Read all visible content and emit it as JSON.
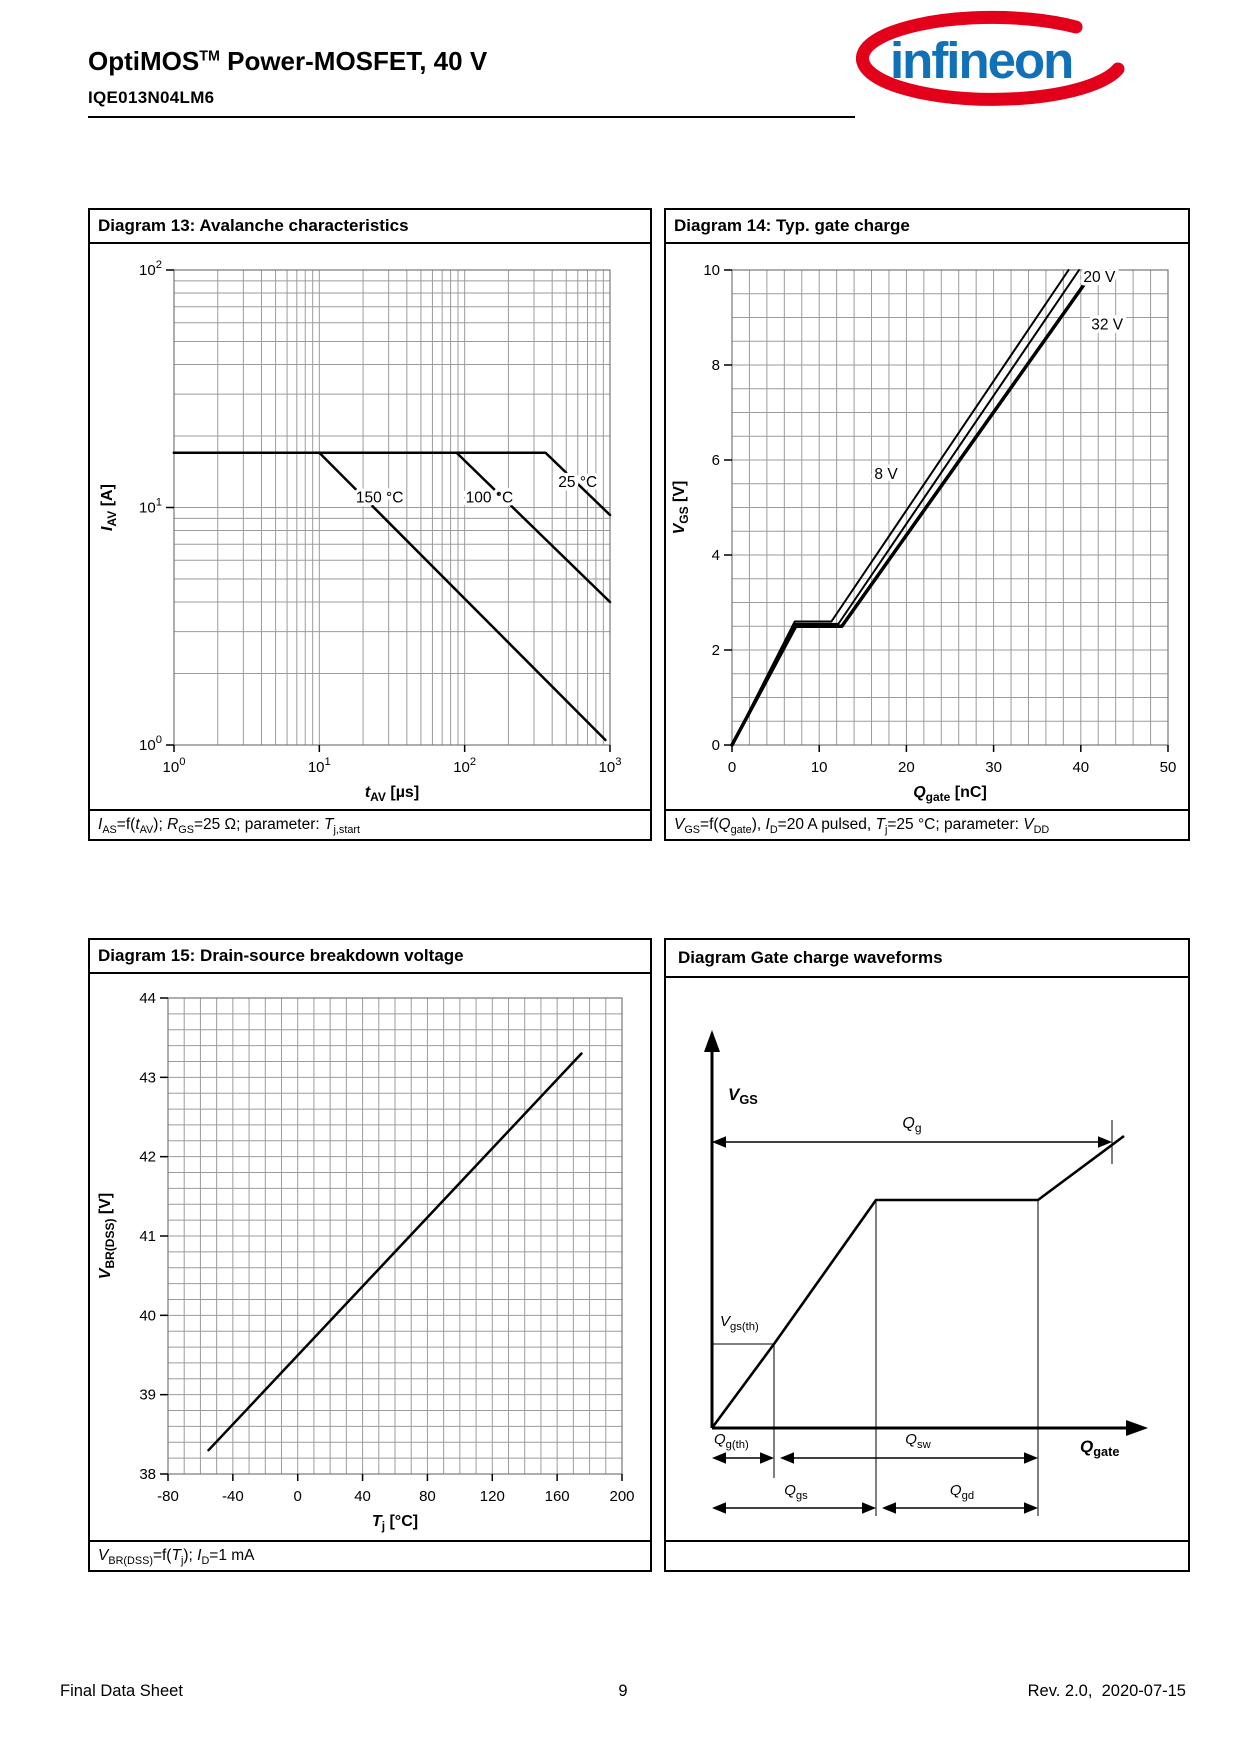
{
  "page": {
    "header": {
      "title": "OptiMOS^TM^ Power-MOSFET, 40 V",
      "part_number": "IQE013N04LM6"
    },
    "logo": {
      "text": "infineon",
      "blue": "#1070B8",
      "red": "#E2001A"
    },
    "footer": {
      "left": "Final Data Sheet",
      "page": "9",
      "right": "Rev. 2.0,  2020-07-15"
    }
  },
  "chart_data": [
    {
      "id": "diagram13",
      "type": "line",
      "title": "Diagram 13: Avalanche characteristics",
      "caption": "*I*~AS~=f(*t*~AV~); *R*~GS~=25 Ω; parameter: *T*~j,start~",
      "xlabel": "*t*~AV~ [µs]",
      "ylabel": "*I*~AV~ [A]",
      "xscale": "log",
      "yscale": "log",
      "xlim": [
        1,
        1000
      ],
      "ylim": [
        1,
        100
      ],
      "grid": "#9b9b9b",
      "line_color": "#000000",
      "series": [
        {
          "name": "150 °C",
          "width": 2.5,
          "points": [
            [
              1,
              17
            ],
            [
              10,
              17
            ],
            [
              930,
              1.05
            ]
          ],
          "label": {
            "text": "150 °C",
            "x": 26,
            "y": 10.5,
            "anchor": "middle"
          }
        },
        {
          "name": "100 °C",
          "width": 2.5,
          "points": [
            [
              1,
              17
            ],
            [
              88,
              17
            ],
            [
              1000,
              4.0
            ]
          ],
          "label": {
            "text": "100 °C",
            "x": 148,
            "y": 10.5,
            "anchor": "middle"
          }
        },
        {
          "name": "25 °C",
          "width": 2.5,
          "points": [
            [
              1,
              17
            ],
            [
              360,
              17
            ],
            [
              1000,
              9.3
            ]
          ],
          "label": {
            "text": "25 °C",
            "x": 600,
            "y": 12.2,
            "anchor": "middle"
          }
        }
      ]
    },
    {
      "id": "diagram14",
      "type": "line",
      "title": "Diagram 14: Typ. gate charge",
      "caption": "*V*~GS~=f(*Q*~gate~), *I*~D~=20 A pulsed, *T*~j~=25 °C; parameter: *V*~DD~",
      "xlabel": "*Q*~gate~ [nC]",
      "ylabel": "*V*~GS~ [V]",
      "xscale": "linear",
      "yscale": "linear",
      "xlim": [
        0,
        50
      ],
      "ylim": [
        0,
        10
      ],
      "xticks": {
        "major": 10,
        "minor": 2
      },
      "yticks": {
        "major": 2,
        "minor": 0.5
      },
      "grid": "#9b9b9b",
      "line_color": "#000000",
      "series": [
        {
          "name": "8 V",
          "width": 2,
          "points": [
            [
              0,
              0
            ],
            [
              7.2,
              2.6
            ],
            [
              11.4,
              2.6
            ],
            [
              38.6,
              10
            ]
          ],
          "label": {
            "text": "8 V",
            "x": 19,
            "y": 5.6,
            "anchor": "end"
          }
        },
        {
          "name": "20 V",
          "width": 2,
          "points": [
            [
              0,
              0
            ],
            [
              7.2,
              2.55
            ],
            [
              12.2,
              2.55
            ],
            [
              39.8,
              10
            ]
          ],
          "label": {
            "text": "20 V",
            "x": 40.3,
            "y": 9.75,
            "anchor": "start"
          }
        },
        {
          "name": "32 V",
          "width": 3.5,
          "points": [
            [
              0,
              0
            ],
            [
              7.3,
              2.5
            ],
            [
              12.6,
              2.5
            ],
            [
              40.4,
              9.7
            ]
          ],
          "label": {
            "text": "32 V",
            "x": 41.2,
            "y": 8.75,
            "anchor": "start"
          }
        }
      ]
    },
    {
      "id": "diagram15",
      "type": "line",
      "title": "Diagram 15: Drain-source breakdown voltage",
      "caption": "*V*~BR(DSS)~=f(*T*~j~); *I*~D~=1 mA",
      "xlabel": "*T*~j~ [°C]",
      "ylabel": "*V*~BR(DSS)~ [V]",
      "xscale": "linear",
      "yscale": "linear",
      "xlim": [
        -80,
        200
      ],
      "ylim": [
        38,
        44
      ],
      "xticks": {
        "major": 40,
        "minor": 10
      },
      "yticks": {
        "major": 1,
        "minor": 0.2
      },
      "grid": "#9b9b9b",
      "line_color": "#000000",
      "series": [
        {
          "name": "V_BR(DSS)",
          "width": 2.5,
          "points": [
            [
              -55,
              38.3
            ],
            [
              175,
              43.3
            ]
          ]
        }
      ]
    },
    {
      "id": "gate-charge-waveforms",
      "type": "schematic",
      "title": "Diagram Gate charge waveforms",
      "caption": "",
      "labels": {
        "vgs": "*V*~GS~",
        "qg": "*Q*~g~",
        "vgsth": "*V*~gs(th)~",
        "qgth": "*Q*~g(th)~",
        "qsw": "*Q*~sw~",
        "qgs": "*Q*~gs~",
        "qgd": "*Q*~gd~",
        "qgate": "*Q*~gate~"
      }
    }
  ]
}
